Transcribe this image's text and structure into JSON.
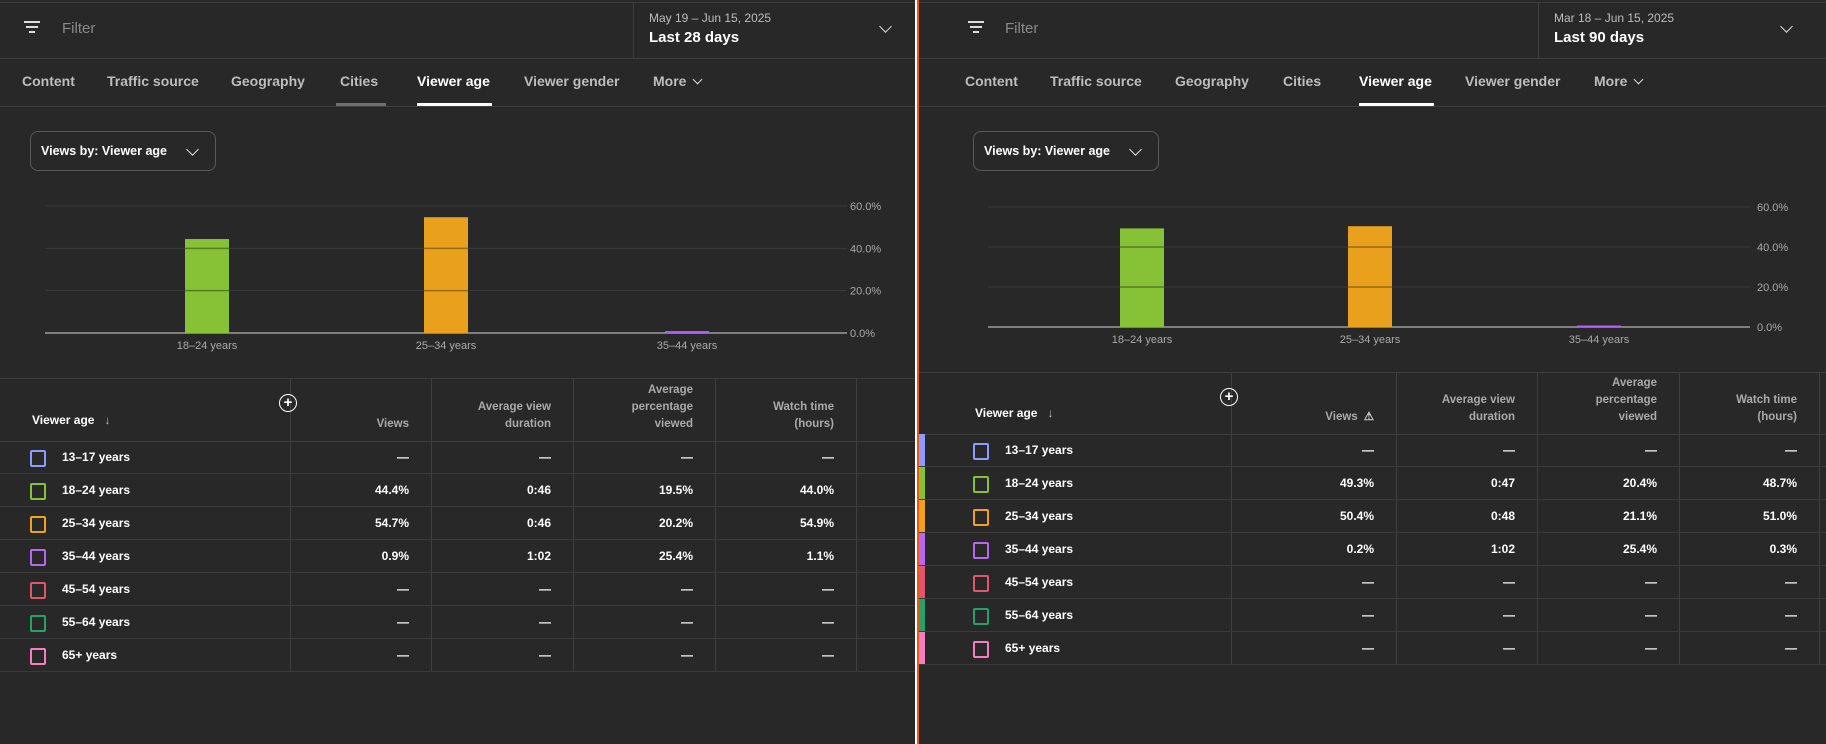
{
  "colors": {
    "background": "#282828",
    "divider_accent": "#e8560f",
    "age_groups": [
      "#8a9cff",
      "#86c136",
      "#f0a11e",
      "#b669ef",
      "#e1566c",
      "#26a269",
      "#f47ec1"
    ]
  },
  "panels": [
    {
      "filter": {
        "placeholder": "Filter",
        "icon": "filter-icon"
      },
      "date_range": "May 19 – Jun 15, 2025",
      "period": "Last 28 days",
      "tabs": [
        "Content",
        "Traffic source",
        "Geography",
        "Cities",
        "Viewer age",
        "Viewer gender",
        "More"
      ],
      "active_tab": "Viewer age",
      "hovered_tab": "Cities",
      "views_by": "Views by: Viewer age",
      "table": {
        "headers": [
          "Viewer age",
          "Views",
          "Average view duration",
          "Average percentage viewed",
          "Watch time (hours)"
        ],
        "header_lines": [
          [
            "Viewer age"
          ],
          [
            "Views"
          ],
          [
            "Average view",
            "duration"
          ],
          [
            "Average",
            "percentage",
            "viewed"
          ],
          [
            "Watch time",
            "(hours)"
          ]
        ],
        "sort": "descending",
        "views_warning": false,
        "rows": [
          {
            "label": "13–17 years",
            "values": [
              "—",
              "—",
              "—",
              "—"
            ]
          },
          {
            "label": "18–24 years",
            "values": [
              "44.4%",
              "0:46",
              "19.5%",
              "44.0%"
            ]
          },
          {
            "label": "25–34 years",
            "values": [
              "54.7%",
              "0:46",
              "20.2%",
              "54.9%"
            ]
          },
          {
            "label": "35–44 years",
            "values": [
              "0.9%",
              "1:02",
              "25.4%",
              "1.1%"
            ]
          },
          {
            "label": "45–54 years",
            "values": [
              "—",
              "—",
              "—",
              "—"
            ]
          },
          {
            "label": "55–64 years",
            "values": [
              "—",
              "—",
              "—",
              "—"
            ]
          },
          {
            "label": "65+ years",
            "values": [
              "—",
              "—",
              "—",
              "—"
            ]
          }
        ]
      }
    },
    {
      "filter": {
        "placeholder": "Filter",
        "icon": "filter-icon"
      },
      "date_range": "Mar 18 – Jun 15, 2025",
      "period": "Last 90 days",
      "tabs": [
        "Content",
        "Traffic source",
        "Geography",
        "Cities",
        "Viewer age",
        "Viewer gender",
        "More"
      ],
      "active_tab": "Viewer age",
      "views_by": "Views by: Viewer age",
      "table": {
        "headers": [
          "Viewer age",
          "Views",
          "Average view duration",
          "Average percentage viewed",
          "Watch time (hours)"
        ],
        "header_lines": [
          [
            "Viewer age"
          ],
          [
            "Views"
          ],
          [
            "Average view",
            "duration"
          ],
          [
            "Average",
            "percentage",
            "viewed"
          ],
          [
            "Watch time",
            "(hours)"
          ]
        ],
        "sort": "descending",
        "views_warning": true,
        "rows": [
          {
            "label": "13–17 years",
            "values": [
              "—",
              "—",
              "—",
              "—"
            ]
          },
          {
            "label": "18–24 years",
            "values": [
              "49.3%",
              "0:47",
              "20.4%",
              "48.7%"
            ]
          },
          {
            "label": "25–34 years",
            "values": [
              "50.4%",
              "0:48",
              "21.1%",
              "51.0%"
            ]
          },
          {
            "label": "35–44 years",
            "values": [
              "0.2%",
              "1:02",
              "25.4%",
              "0.3%"
            ]
          },
          {
            "label": "45–54 years",
            "values": [
              "—",
              "—",
              "—",
              "—"
            ]
          },
          {
            "label": "55–64 years",
            "values": [
              "—",
              "—",
              "—",
              "—"
            ]
          },
          {
            "label": "65+ years",
            "values": [
              "—",
              "—",
              "—",
              "—"
            ]
          }
        ]
      }
    }
  ],
  "chart_data": [
    {
      "type": "bar",
      "categories": [
        "18–24 years",
        "25–34 years",
        "35–44 years"
      ],
      "values": [
        44.4,
        54.7,
        0.9
      ],
      "colors": [
        "#86c136",
        "#e9a11d",
        "#b35ff5"
      ],
      "yticks": [
        "0.0%",
        "20.0%",
        "40.0%",
        "60.0%"
      ],
      "ylim": [
        0,
        60
      ],
      "grid": true,
      "yaxis_side": "right"
    },
    {
      "type": "bar",
      "categories": [
        "18–24 years",
        "25–34 years",
        "35–44 years"
      ],
      "values": [
        49.3,
        50.4,
        0.2
      ],
      "colors": [
        "#86c136",
        "#e9a11d",
        "#b35ff5"
      ],
      "yticks": [
        "0.0%",
        "20.0%",
        "40.0%",
        "60.0%"
      ],
      "ylim": [
        0,
        60
      ],
      "grid": true,
      "yaxis_side": "right"
    }
  ]
}
